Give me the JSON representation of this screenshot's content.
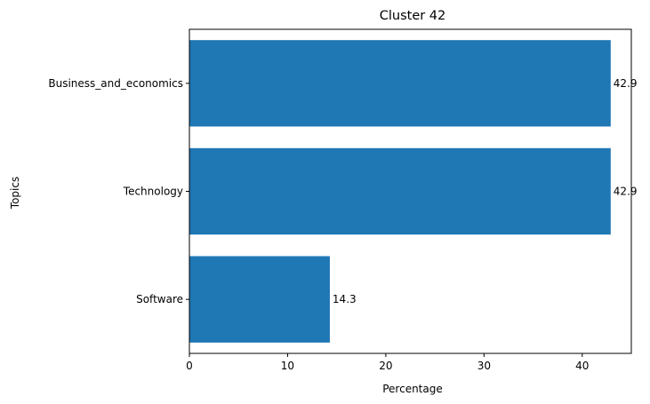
{
  "chart_data": {
    "type": "bar",
    "orientation": "horizontal",
    "title": "Cluster 42",
    "xlabel": "Percentage",
    "ylabel": "Topics",
    "categories": [
      "Business_and_economics",
      "Technology",
      "Software"
    ],
    "values": [
      42.9,
      42.9,
      14.3
    ],
    "data_labels": [
      "42.9",
      "42.9",
      "14.3"
    ],
    "xlim": [
      0,
      45
    ],
    "xticks": [
      0,
      10,
      20,
      30,
      40
    ],
    "grid": false,
    "legend": "none",
    "bar_color": "#1f77b4"
  }
}
